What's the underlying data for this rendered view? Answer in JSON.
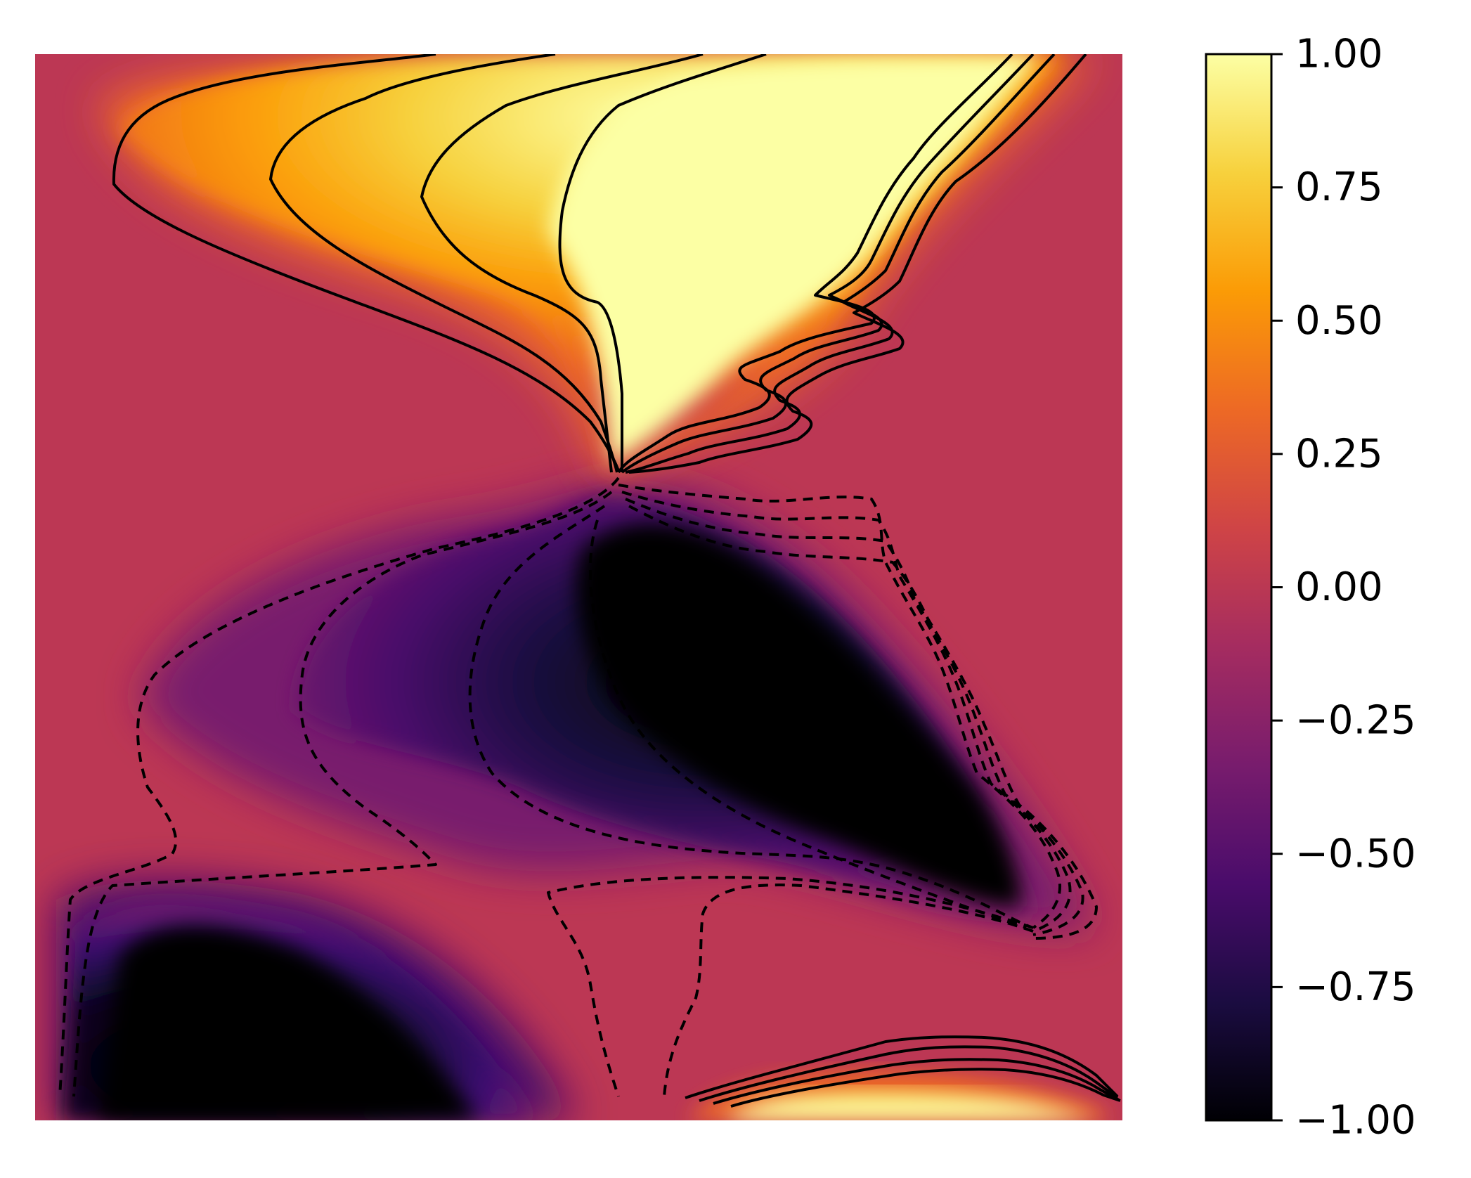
{
  "chart_data": {
    "type": "heatmap",
    "title": "",
    "xlabel": "",
    "ylabel": "",
    "axes_visible": false,
    "colormap": "inferno",
    "colormap_stops": [
      "#000004",
      "#1b0c41",
      "#4a0c6b",
      "#781c6d",
      "#a52c60",
      "#cf4446",
      "#ed6925",
      "#fb9b06",
      "#f7d13d",
      "#fcffa4"
    ],
    "background_value": 0.0,
    "value_range": [
      -1.0,
      1.0
    ],
    "regions": [
      {
        "name": "upper positive plume",
        "sign": "positive",
        "peak_value": 1.0,
        "location": "top-center to top-right"
      },
      {
        "name": "lower-right positive band",
        "sign": "positive",
        "peak_value": 1.0,
        "location": "bottom-right edge"
      },
      {
        "name": "central negative lobe",
        "sign": "negative",
        "peak_value": -1.0,
        "location": "center to right"
      },
      {
        "name": "lower-left negative lobe",
        "sign": "negative",
        "peak_value": -1.0,
        "location": "bottom-left"
      }
    ],
    "contours": {
      "positive_style": "solid",
      "negative_style": "dashed",
      "color": "#000000"
    },
    "colorbar": {
      "ticks": [
        1.0,
        0.75,
        0.5,
        0.25,
        0.0,
        -0.25,
        -0.5,
        -0.75,
        -1.0
      ],
      "tick_labels": [
        "1.00",
        "0.75",
        "0.50",
        "0.25",
        "0.00",
        "−0.25",
        "−0.50",
        "−0.75",
        "−1.00"
      ],
      "position": "right"
    }
  }
}
